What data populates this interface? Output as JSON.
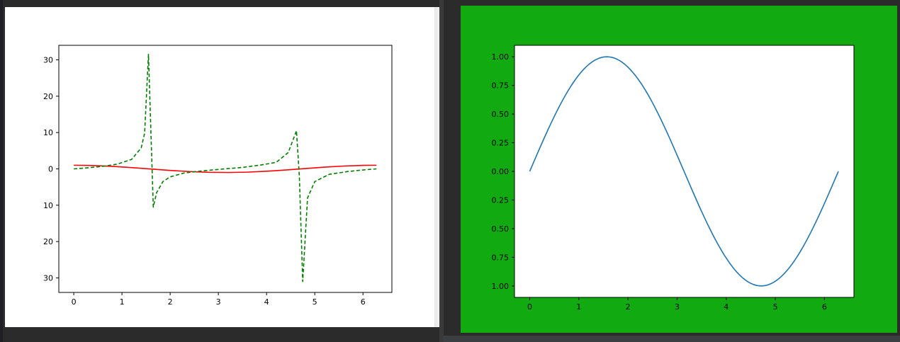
{
  "windows": [
    {
      "id": "left",
      "background": "#ffffff",
      "chart_data": {
        "type": "line",
        "xlim": [
          -0.31,
          6.6
        ],
        "ylim": [
          -34,
          34
        ],
        "xticks": [
          0,
          1,
          2,
          3,
          4,
          5,
          6
        ],
        "xtick_labels": [
          "0",
          "1",
          "2",
          "3",
          "4",
          "5",
          "6"
        ],
        "yticks": [
          30,
          20,
          10,
          0,
          -10,
          -20,
          -30
        ],
        "ytick_labels": [
          "30",
          "20",
          "10",
          "0",
          "10",
          "20",
          "30"
        ],
        "grid": false,
        "series": [
          {
            "style": "solid",
            "color": "#ff0000",
            "x": [
              0,
              0.4,
              0.8,
              1.2,
              1.6,
              2.0,
              2.4,
              2.8,
              3.2,
              3.6,
              4.0,
              4.4,
              4.8,
              5.2,
              5.6,
              6.0,
              6.28
            ],
            "y": [
              1.0,
              0.92,
              0.7,
              0.36,
              -0.03,
              -0.42,
              -0.74,
              -0.94,
              -1.0,
              -0.9,
              -0.65,
              -0.31,
              0.09,
              0.47,
              0.78,
              0.96,
              1.0
            ]
          },
          {
            "style": "dashed",
            "color": "#008000",
            "x": [
              0,
              0.3,
              0.6,
              0.9,
              1.2,
              1.4,
              1.47,
              1.55,
              1.65,
              1.72,
              1.85,
              2.0,
              2.3,
              2.7,
              3.1,
              3.5,
              3.9,
              4.2,
              4.45,
              4.55,
              4.62,
              4.68,
              4.75,
              4.85,
              5.0,
              5.3,
              5.7,
              6.0,
              6.28
            ],
            "y": [
              0,
              0.3,
              0.7,
              1.3,
              2.6,
              5.8,
              9.8,
              31.5,
              -10.5,
              -6.5,
              -3.5,
              -2.2,
              -1.1,
              -0.5,
              -0.04,
              0.4,
              1.1,
              1.8,
              4.5,
              8.0,
              10.5,
              -2.0,
              -31.0,
              -8.0,
              -3.5,
              -1.5,
              -0.7,
              -0.3,
              0
            ]
          }
        ]
      }
    },
    {
      "id": "right",
      "background": "#11aa11",
      "chart_data": {
        "type": "line",
        "xlim": [
          -0.31,
          6.6
        ],
        "ylim": [
          -1.1,
          1.1
        ],
        "xticks": [
          0,
          1,
          2,
          3,
          4,
          5,
          6
        ],
        "xtick_labels": [
          "0",
          "1",
          "2",
          "3",
          "4",
          "5",
          "6"
        ],
        "yticks": [
          1.0,
          0.75,
          0.5,
          0.25,
          0,
          -0.25,
          -0.5,
          -0.75,
          -1.0
        ],
        "ytick_labels": [
          "1.00",
          "0.75",
          "0.50",
          "0.25",
          "0.00",
          "0.25",
          "0.50",
          "0.75",
          "1.00"
        ],
        "grid": false,
        "series": [
          {
            "style": "solid",
            "color": "#1f77b4",
            "function": "sin",
            "x_range": [
              0,
              6.283
            ]
          }
        ]
      }
    }
  ]
}
